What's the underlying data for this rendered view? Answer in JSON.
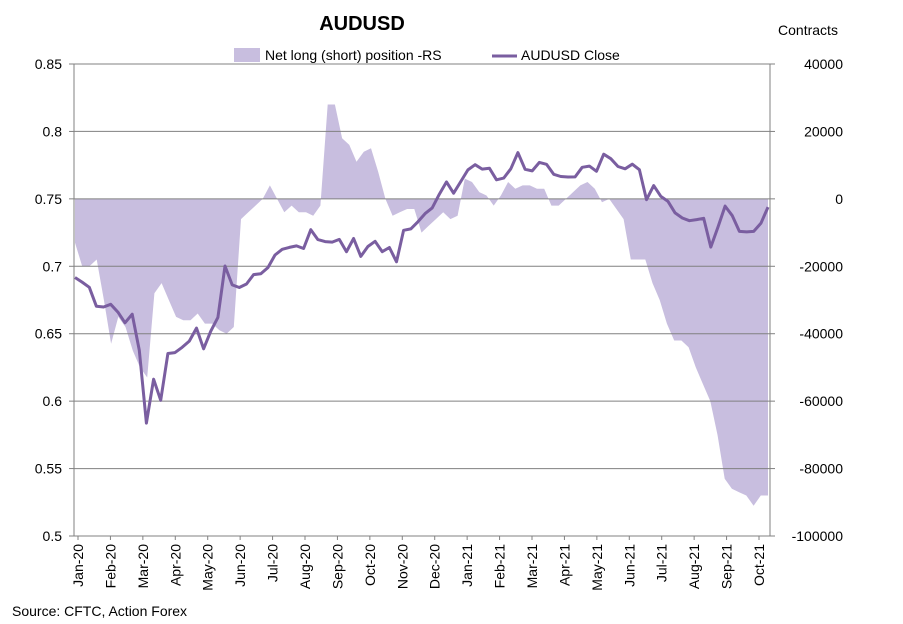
{
  "chart_data": {
    "type": "line",
    "title": "AUDUSD",
    "right_axis_title": "Contracts",
    "source": "Source: CFTC, Action Forex",
    "colors": {
      "line": "#7a5ea0",
      "area": "#c8bedf",
      "grid": "#808080"
    },
    "y_left": {
      "min": 0.5,
      "max": 0.85,
      "ticks": [
        0.85,
        0.8,
        0.75,
        0.7,
        0.65,
        0.6,
        0.55,
        0.5
      ],
      "tick_labels": [
        "0.85",
        "0.8",
        "0.75",
        "0.7",
        "0.65",
        "0.6",
        "0.55",
        "0.5"
      ]
    },
    "y_right": {
      "min": -100000,
      "max": 40000,
      "ticks": [
        40000,
        20000,
        0,
        -20000,
        -40000,
        -60000,
        -80000,
        -100000
      ],
      "tick_labels": [
        "40000",
        "20000",
        "0",
        "-20000",
        "-40000",
        "-60000",
        "-80000",
        "-100000"
      ]
    },
    "x_labels": [
      "Jan-20",
      "Feb-20",
      "Mar-20",
      "Apr-20",
      "May-20",
      "Jun-20",
      "Jul-20",
      "Aug-20",
      "Sep-20",
      "Oct-20",
      "Nov-20",
      "Dec-20",
      "Jan-21",
      "Feb-21",
      "Mar-21",
      "Apr-21",
      "May-21",
      "Jun-21",
      "Jul-21",
      "Aug-21",
      "Sep-21",
      "Oct-21"
    ],
    "legend": {
      "area_label": "Net long (short) position -RS",
      "line_label": "AUDUSD Close",
      "placement": "top"
    },
    "series": [
      {
        "name": "AUDUSD Close",
        "axis": "left",
        "type": "line",
        "values": [
          0.6917,
          0.6883,
          0.6844,
          0.6703,
          0.6698,
          0.6718,
          0.666,
          0.6581,
          0.6645,
          0.6377,
          0.5837,
          0.6163,
          0.6006,
          0.6353,
          0.636,
          0.6399,
          0.6445,
          0.6542,
          0.6388,
          0.6518,
          0.6621,
          0.7002,
          0.6862,
          0.6843,
          0.6869,
          0.6938,
          0.6944,
          0.699,
          0.7084,
          0.7126,
          0.714,
          0.7151,
          0.7132,
          0.7271,
          0.7198,
          0.7183,
          0.7179,
          0.7199,
          0.7108,
          0.7206,
          0.7073,
          0.7147,
          0.7185,
          0.7108,
          0.7139,
          0.7033,
          0.7267,
          0.7277,
          0.733,
          0.7391,
          0.7433,
          0.7535,
          0.7626,
          0.7542,
          0.7629,
          0.7715,
          0.7753,
          0.7721,
          0.7727,
          0.7641,
          0.7654,
          0.7723,
          0.7843,
          0.7719,
          0.7707,
          0.777,
          0.7756,
          0.7682,
          0.7666,
          0.7662,
          0.7663,
          0.7734,
          0.7743,
          0.7704,
          0.7831,
          0.7798,
          0.774,
          0.7723,
          0.7757,
          0.7716,
          0.7494,
          0.7598,
          0.7519,
          0.7481,
          0.7396,
          0.7358,
          0.7338,
          0.7346,
          0.7356,
          0.7142,
          0.7291,
          0.7446,
          0.7375,
          0.7259,
          0.7255,
          0.7259,
          0.7319,
          0.7439
        ]
      },
      {
        "name": "Net long (short) position -RS",
        "axis": "right",
        "type": "area",
        "values": [
          -13000,
          -20000,
          -20000,
          -18000,
          -30000,
          -43000,
          -35000,
          -38000,
          -45000,
          -50000,
          -53000,
          -28000,
          -25000,
          -30000,
          -35000,
          -36000,
          -36000,
          -34000,
          -37000,
          -37000,
          -39000,
          -40000,
          -38000,
          -6000,
          -4000,
          -2000,
          0,
          4000,
          0,
          -4000,
          -2000,
          -4000,
          -4000,
          -5000,
          -2000,
          28000,
          28000,
          18000,
          16000,
          11000,
          14000,
          15000,
          8000,
          0,
          -5000,
          -4000,
          -3000,
          -3000,
          -10000,
          -8000,
          -6000,
          -4000,
          -6000,
          -5000,
          6000,
          5000,
          2000,
          1000,
          -2000,
          1000,
          5000,
          3000,
          4000,
          4000,
          3000,
          3000,
          -2000,
          -2000,
          0,
          2000,
          4000,
          5000,
          3000,
          -1000,
          0,
          -3000,
          -6000,
          -18000,
          -18000,
          -18000,
          -25000,
          -30000,
          -37000,
          -42000,
          -42000,
          -44000,
          -50000,
          -55000,
          -60000,
          -70000,
          -83000,
          -86000,
          -87000,
          -88000,
          -91000,
          -88000,
          -88000
        ]
      }
    ]
  }
}
